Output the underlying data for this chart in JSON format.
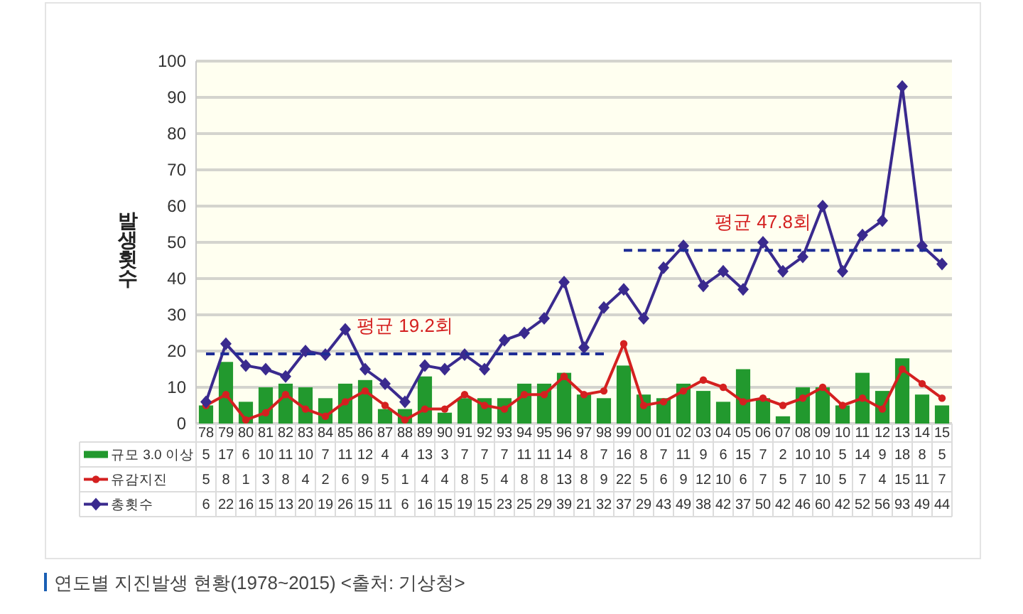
{
  "chart_data": {
    "type": "bar",
    "title": "연도별 지진발생 현황(1978~2015) <출처: 기상청>",
    "ylabel": "발생횟수",
    "categories": [
      "78",
      "79",
      "80",
      "81",
      "82",
      "83",
      "84",
      "85",
      "86",
      "87",
      "88",
      "89",
      "90",
      "91",
      "92",
      "93",
      "94",
      "95",
      "96",
      "97",
      "98",
      "99",
      "00",
      "01",
      "02",
      "03",
      "04",
      "05",
      "06",
      "07",
      "08",
      "09",
      "10",
      "11",
      "12",
      "13",
      "14",
      "15"
    ],
    "ylim": [
      0,
      100
    ],
    "yticks": [
      0,
      10,
      20,
      30,
      40,
      50,
      60,
      70,
      80,
      90,
      100
    ],
    "grid": "y",
    "legend": "bottom",
    "series": [
      {
        "name": "규모 3.0 이상",
        "color": "#22992e",
        "values": [
          5,
          17,
          6,
          10,
          11,
          10,
          7,
          11,
          12,
          4,
          4,
          13,
          3,
          7,
          7,
          7,
          11,
          11,
          14,
          8,
          7,
          16,
          8,
          7,
          11,
          9,
          6,
          15,
          7,
          2,
          10,
          10,
          5,
          14,
          9,
          18,
          8,
          5
        ],
        "value_labels": [
          "5",
          "17",
          "6",
          "10",
          "11",
          "10",
          "7",
          "11",
          "12",
          "4",
          "4",
          "13",
          "3",
          "7",
          "7",
          "7",
          "11",
          "11",
          "14",
          "8",
          "7",
          "16",
          "8",
          "7",
          "11",
          "9",
          "6",
          "15",
          "7",
          "2",
          "10",
          "10",
          "5",
          "14",
          "9",
          "18",
          "8",
          "5"
        ]
      },
      {
        "name": "유감지진",
        "type": "line",
        "marker": "circle",
        "color": "#d42020",
        "values": [
          5,
          8,
          1,
          3,
          8,
          4,
          2,
          6,
          9,
          5,
          1,
          4,
          4,
          8,
          5,
          4,
          8,
          8,
          13,
          8,
          9,
          22,
          5,
          6,
          9,
          12,
          10,
          6,
          7,
          5,
          7,
          10,
          5,
          7,
          4,
          15,
          11,
          7
        ],
        "value_labels": [
          "5",
          "8",
          "1",
          "3",
          "8",
          "4",
          "2",
          "6",
          "9",
          "5",
          "1",
          "4",
          "4",
          "8",
          "5",
          "4",
          "8",
          "8",
          "13",
          "8",
          "9",
          "22",
          "5",
          "6",
          "9",
          "12",
          "10",
          "6",
          "7",
          "5",
          "7",
          "10",
          "5",
          "7",
          "4",
          "15",
          "11",
          "7"
        ]
      },
      {
        "name": "총횟수",
        "type": "line",
        "marker": "diamond",
        "color": "#3a2a8e",
        "values": [
          6,
          22,
          16,
          15,
          13,
          20,
          19,
          26,
          15,
          11,
          6,
          16,
          15,
          19,
          15,
          23,
          25,
          29,
          39,
          21,
          32,
          37,
          29,
          43,
          49,
          38,
          42,
          37,
          50,
          42,
          46,
          60,
          42,
          52,
          56,
          93,
          49,
          44
        ],
        "value_labels": [
          "6",
          "22",
          "16",
          "15",
          "13",
          "20",
          "19",
          "26",
          "15",
          "11",
          "6",
          "16",
          "15",
          "19",
          "15",
          "23",
          "25",
          "29",
          "39",
          "21",
          "32",
          "37",
          "29",
          "43",
          "49",
          "38",
          "42",
          "37",
          "50",
          "42",
          "46",
          "60",
          "42",
          "52",
          "56",
          "93",
          "49",
          "44"
        ]
      },
      {
        "type": "line",
        "marker": "none",
        "line_style": "dashed",
        "color": "#1e2d96",
        "values": [
          19.2,
          19.2,
          19.2,
          19.2,
          19.2,
          19.2,
          19.2,
          19.2,
          19.2,
          19.2,
          19.2,
          19.2,
          19.2,
          19.2,
          19.2,
          19.2,
          19.2,
          19.2,
          19.2,
          19.2,
          19.2,
          null,
          null,
          null,
          null,
          null,
          null,
          null,
          null,
          null,
          null,
          null,
          null,
          null,
          null,
          null,
          null,
          null
        ],
        "value_labels": [
          null,
          null,
          null,
          null,
          null,
          null,
          null,
          null,
          null,
          null,
          "평균 19.2회",
          null,
          null,
          null,
          null,
          null,
          null,
          null,
          null,
          null,
          null,
          null,
          null,
          null,
          null,
          null,
          null,
          null,
          null,
          null,
          null,
          null,
          null,
          null,
          null,
          null,
          null,
          null
        ]
      },
      {
        "type": "line",
        "marker": "none",
        "line_style": "dashed",
        "color": "#1e2d96",
        "values": [
          null,
          null,
          null,
          null,
          null,
          null,
          null,
          null,
          null,
          null,
          null,
          null,
          null,
          null,
          null,
          null,
          null,
          null,
          null,
          null,
          null,
          47.8,
          47.8,
          47.8,
          47.8,
          47.8,
          47.8,
          47.8,
          47.8,
          47.8,
          47.8,
          47.8,
          47.8,
          47.8,
          47.8,
          47.8,
          47.8,
          47.8
        ],
        "value_labels": [
          null,
          null,
          null,
          null,
          null,
          null,
          null,
          null,
          null,
          null,
          null,
          null,
          null,
          null,
          null,
          null,
          null,
          null,
          null,
          null,
          null,
          null,
          null,
          null,
          null,
          null,
          null,
          null,
          "평균 47.8회",
          null,
          null,
          null,
          null,
          null,
          null,
          null,
          null,
          null
        ]
      }
    ]
  }
}
